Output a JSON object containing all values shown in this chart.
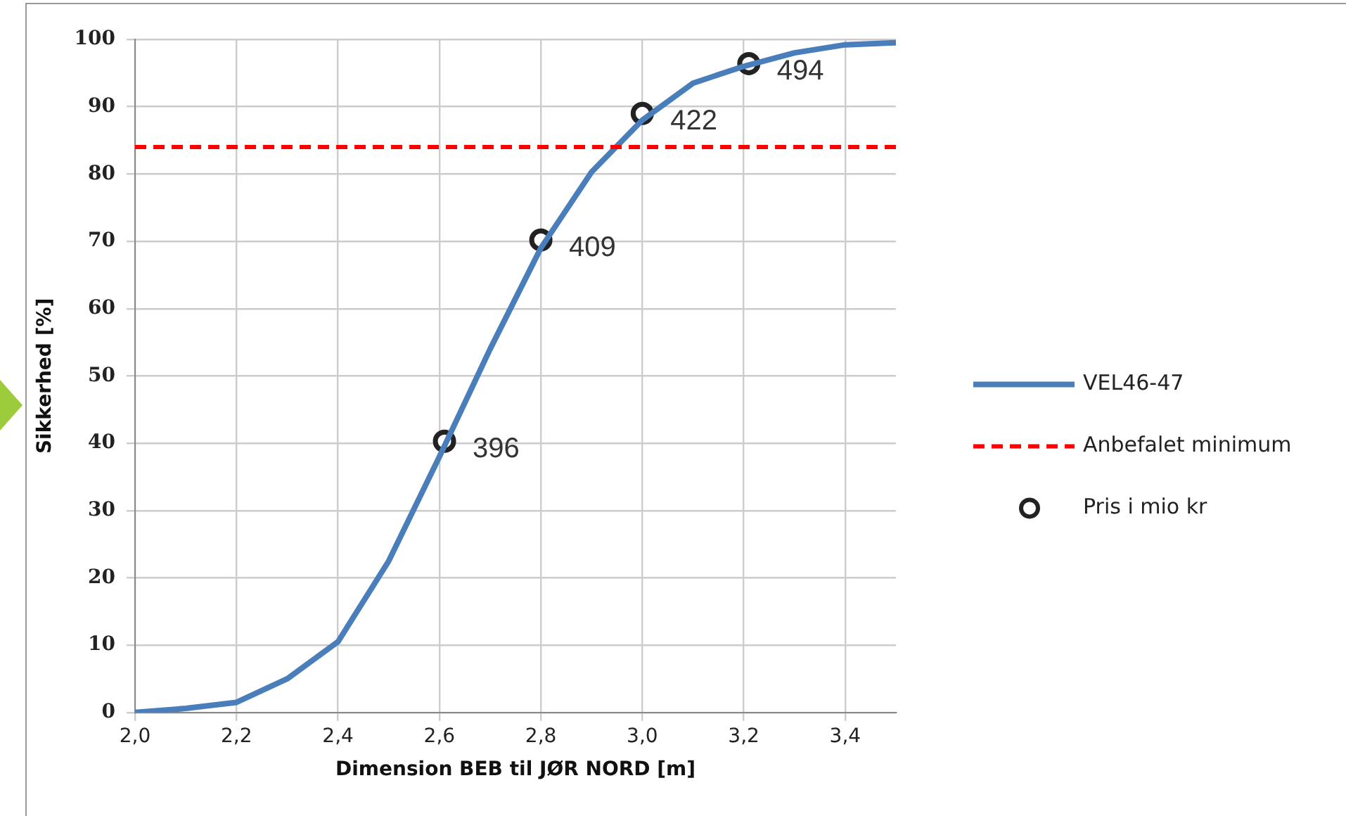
{
  "chart_data": {
    "type": "line",
    "xlabel": "Dimension BEB til JØR NORD [m]",
    "ylabel": "Sikkerhed [%]",
    "xlim": [
      2.0,
      3.5
    ],
    "xticks": [
      {
        "value": 2.0,
        "label": "2,0"
      },
      {
        "value": 2.2,
        "label": "2,2"
      },
      {
        "value": 2.4,
        "label": "2,4"
      },
      {
        "value": 2.6,
        "label": "2,6"
      },
      {
        "value": 2.8,
        "label": "2,8"
      },
      {
        "value": 3.0,
        "label": "3,0"
      },
      {
        "value": 3.2,
        "label": "3,2"
      },
      {
        "value": 3.4,
        "label": "3,4"
      }
    ],
    "ylim": [
      0,
      100
    ],
    "yticks": [
      0,
      10,
      20,
      30,
      40,
      50,
      60,
      70,
      80,
      90,
      100
    ],
    "grid": true,
    "legend": "right",
    "series": [
      {
        "name": "VEL46-47",
        "color": "#4a7ebb",
        "x": [
          2.0,
          2.1,
          2.2,
          2.3,
          2.4,
          2.5,
          2.6,
          2.7,
          2.8,
          2.9,
          3.0,
          3.1,
          3.2,
          3.3,
          3.4,
          3.5
        ],
        "values": [
          0,
          0.6,
          1.5,
          5,
          10.5,
          22.5,
          38,
          54,
          69,
          80.3,
          88,
          93.5,
          96,
          98,
          99.2,
          99.5
        ],
        "marker": "none"
      },
      {
        "name": "Pris i mio kr",
        "type": "scatter",
        "color": "#222222",
        "marker": "circle",
        "x": [
          2.61,
          2.8,
          3.0,
          3.21
        ],
        "values": [
          40.3,
          70.2,
          89,
          96.4
        ]
      }
    ],
    "annotations": [
      {
        "text": "396",
        "x": 2.61,
        "y": 40.3
      },
      {
        "text": "409",
        "x": 2.8,
        "y": 70.2
      },
      {
        "text": "422",
        "x": 3.0,
        "y": 89
      },
      {
        "text": "494",
        "x": 3.21,
        "y": 96.4
      }
    ],
    "ref_lines": [
      {
        "axis": "y",
        "value": 84,
        "label": "Anbefalet minimum",
        "color": "#ff0000",
        "line_style": "dashed"
      }
    ]
  }
}
